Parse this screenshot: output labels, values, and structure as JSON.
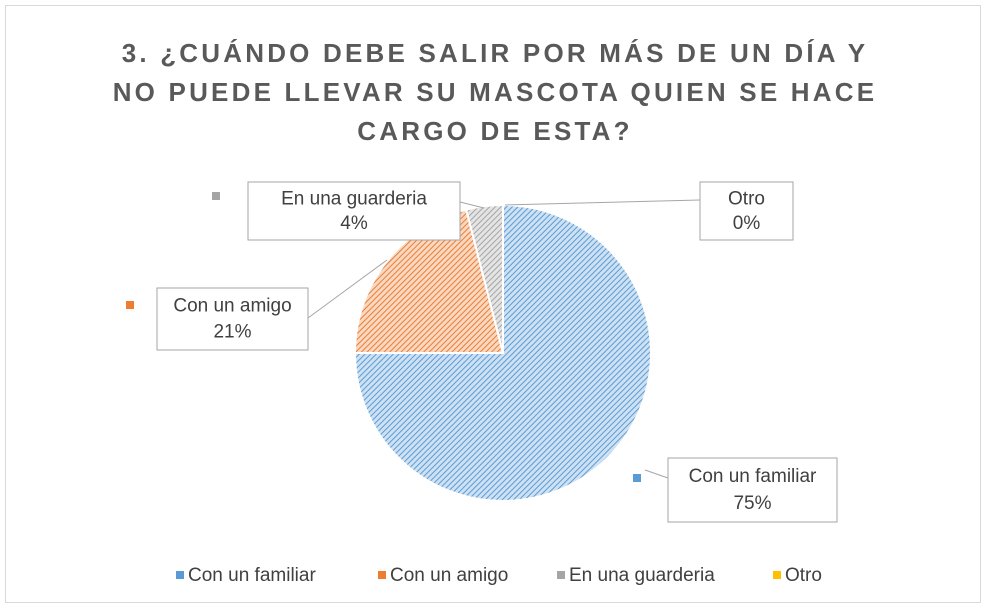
{
  "chart_data": {
    "type": "pie",
    "title": "3. ¿CUÁNDO DEBE SALIR POR MÁS DE UN DÍA Y NO PUEDE LLEVAR SU MASCOTA QUIEN SE HACE CARGO DE ESTA?",
    "categories": [
      "Con un familiar",
      "Con un amigo",
      "En una guarderia",
      "Otro"
    ],
    "values": [
      75,
      21,
      4,
      0
    ],
    "value_labels": [
      "75%",
      "21%",
      "4%",
      "0%"
    ],
    "colors": [
      "#5b9bd5",
      "#ed7d31",
      "#a5a5a5",
      "#ffc000"
    ],
    "legend": "bottom"
  }
}
